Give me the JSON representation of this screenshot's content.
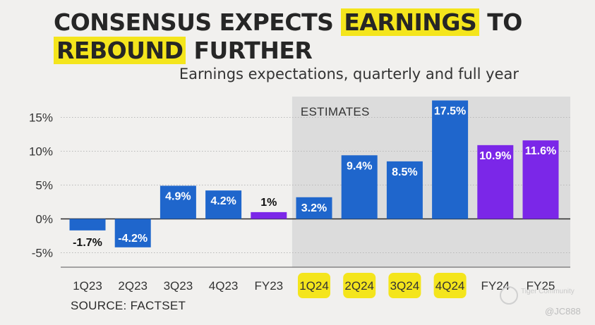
{
  "title": {
    "part1": "CONSENSUS EXPECTS ",
    "highlight1": "EARNINGS",
    "part2": " TO ",
    "highlight2": "REBOUND",
    "part3": " FURTHER"
  },
  "subtitle": "Earnings expectations, quarterly and full year",
  "source": "SOURCE: FACTSET",
  "watermark": {
    "brand": "Tiger Community",
    "user": "@JC888"
  },
  "colors": {
    "quarter": "#1f66cc",
    "full_year": "#7b27e8",
    "estimate_bg": "#dcdcdc",
    "highlight": "#f4e51c"
  },
  "chart_data": {
    "type": "bar",
    "title": "Earnings expectations, quarterly and full year",
    "categories": [
      "1Q23",
      "2Q23",
      "3Q23",
      "4Q23",
      "FY23",
      "1Q24",
      "2Q24",
      "3Q24",
      "4Q24",
      "FY24",
      "FY25"
    ],
    "values": [
      -1.7,
      -4.2,
      4.9,
      4.2,
      1,
      3.2,
      9.4,
      8.5,
      17.5,
      10.9,
      11.6
    ],
    "labels": [
      "-1.7%",
      "-4.2%",
      "4.9%",
      "4.2%",
      "1%",
      "3.2%",
      "9.4%",
      "8.5%",
      "17.5%",
      "10.9%",
      "11.6%"
    ],
    "bar_kind": [
      "quarter",
      "quarter",
      "quarter",
      "quarter",
      "full_year",
      "quarter",
      "quarter",
      "quarter",
      "quarter",
      "full_year",
      "full_year"
    ],
    "highlighted_categories": [
      "1Q24",
      "2Q24",
      "3Q24",
      "4Q24"
    ],
    "estimates_label": "ESTIMATES",
    "estimates_range": [
      "1Q24",
      "FY25"
    ],
    "yticks": [
      15,
      10,
      5,
      0,
      -5
    ],
    "ytick_labels": [
      "15%",
      "10%",
      "5%",
      "0%",
      "-5%"
    ],
    "ylim": [
      -7,
      18
    ]
  }
}
